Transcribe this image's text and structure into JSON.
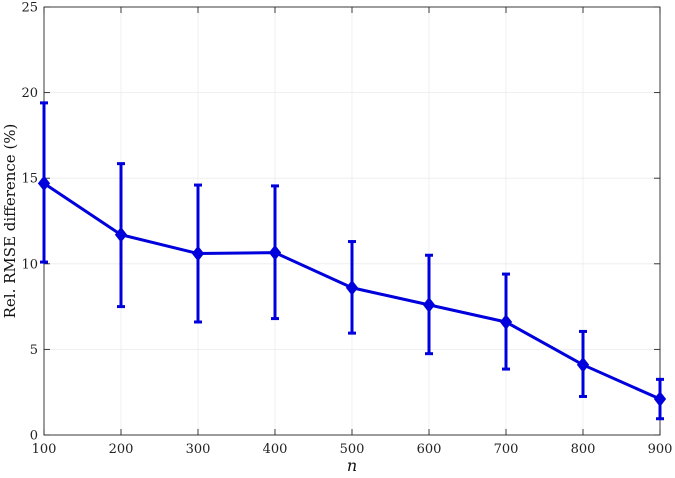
{
  "chart_data": {
    "type": "line",
    "title": "",
    "xlabel": "n",
    "ylabel": "Rel. RMSE difference (%)",
    "xlim": [
      100,
      900
    ],
    "ylim": [
      0,
      25
    ],
    "x_ticks": [
      100,
      200,
      300,
      400,
      500,
      600,
      700,
      800,
      900
    ],
    "y_ticks": [
      0,
      5,
      10,
      15,
      20,
      25
    ],
    "x_tick_labels": [
      "100",
      "200",
      "300",
      "400",
      "500",
      "600",
      "700",
      "800",
      "900"
    ],
    "y_tick_labels": [
      "0",
      "5",
      "10",
      "15",
      "20",
      "25"
    ],
    "grid": true,
    "series": [
      {
        "color": "#0000dd",
        "marker": "diamond",
        "x": [
          100,
          200,
          300,
          400,
          500,
          600,
          700,
          800,
          900
        ],
        "values": [
          14.7,
          11.7,
          10.6,
          10.65,
          8.6,
          7.6,
          6.6,
          4.1,
          2.1
        ],
        "err_low": [
          10.1,
          7.5,
          6.6,
          6.8,
          5.95,
          4.75,
          3.85,
          2.25,
          0.95
        ],
        "err_high": [
          19.4,
          15.85,
          14.6,
          14.55,
          11.3,
          10.5,
          9.4,
          6.05,
          3.25
        ]
      }
    ]
  }
}
